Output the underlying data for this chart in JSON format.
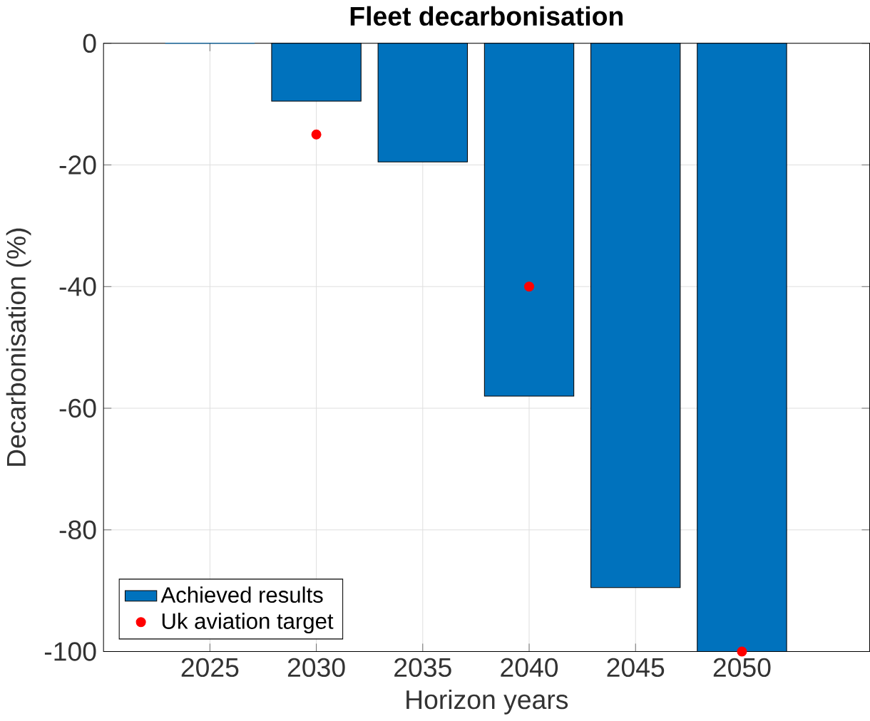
{
  "chart_data": {
    "type": "bar",
    "title": "Fleet decarbonisation",
    "xlabel": "Horizon years",
    "ylabel": "Decarbonisation (%)",
    "x": [
      2025,
      2030,
      2035,
      2040,
      2045,
      2050
    ],
    "series": [
      {
        "name": "Achieved results",
        "color": "#0072bd",
        "values": [
          0,
          -9.5,
          -19.5,
          -58,
          -89.5,
          -100
        ]
      },
      {
        "name": "Uk aviation target",
        "type": "scatter",
        "color": "#ff0000",
        "values": [
          null,
          -15,
          null,
          -40,
          null,
          -100
        ]
      }
    ],
    "xlim": [
      2020,
      2056
    ],
    "xticks": [
      2025,
      2030,
      2035,
      2040,
      2045,
      2050
    ],
    "ylim": [
      -100,
      0
    ],
    "yticks": [
      -100,
      -80,
      -60,
      -40,
      -20,
      0
    ],
    "marker": "circle",
    "grid": true,
    "legend": "bottom left"
  }
}
